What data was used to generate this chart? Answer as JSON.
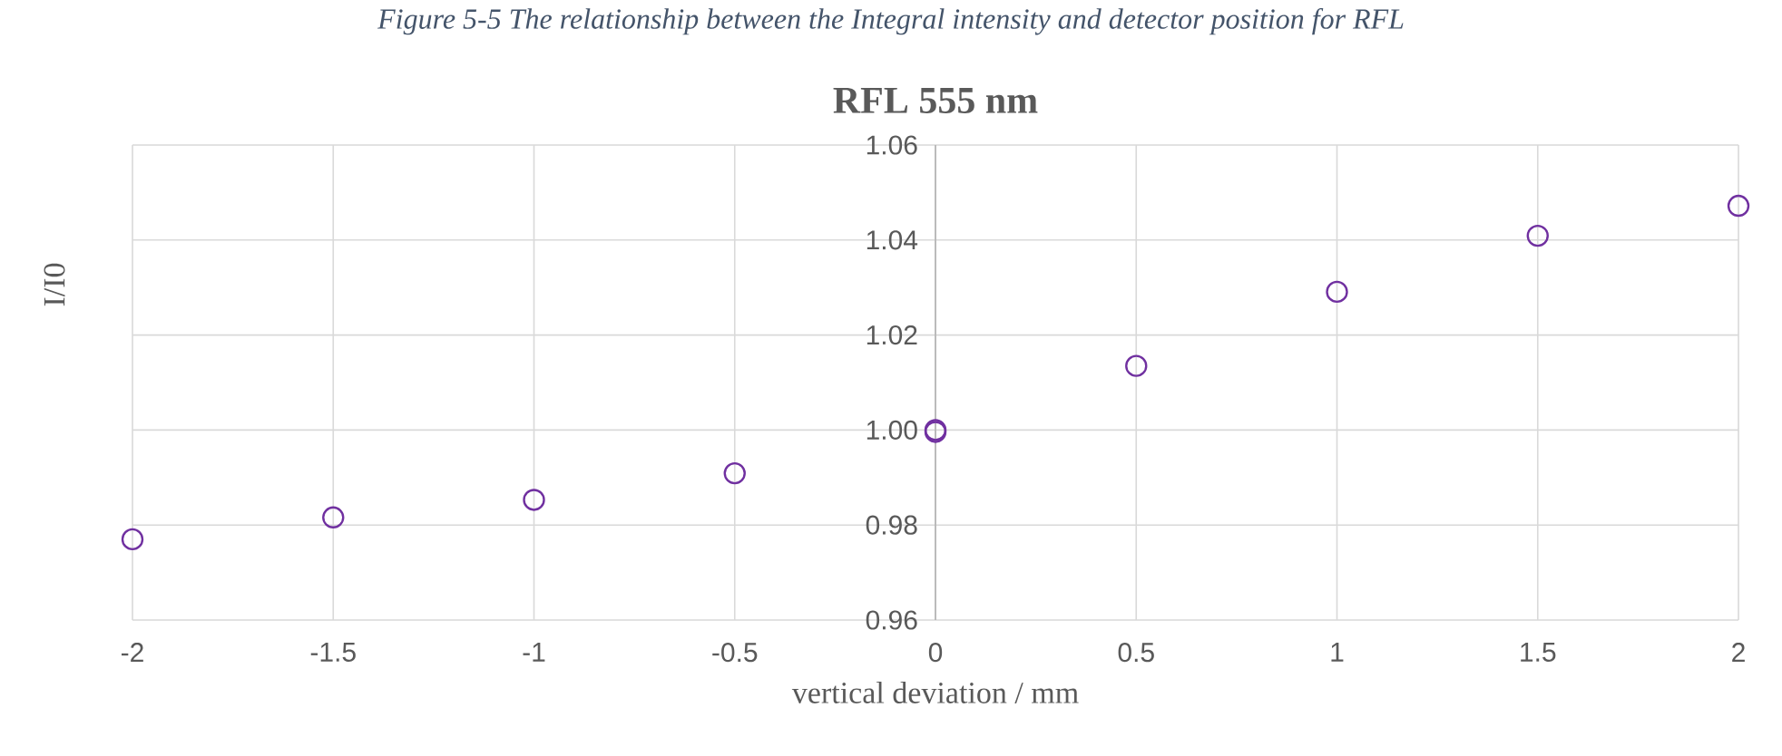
{
  "chart_data": {
    "type": "scatter",
    "title": "RFL 555 nm",
    "xlabel": "vertical deviation / mm",
    "ylabel": "I/I0",
    "annotations": [
      "Figure 5-5 The relationship between the Integral intensity and detector position for RFL"
    ],
    "x": [
      -2,
      -1.5,
      -1,
      -0.5,
      0,
      0,
      0.5,
      1,
      1.5,
      2
    ],
    "series": [
      {
        "color": "#7030a0",
        "values": [
          0.977,
          0.9816,
          0.9853,
          0.9909,
          1.0,
          0.9996,
          1.0135,
          1.0291,
          1.0409,
          1.0472
        ]
      }
    ],
    "xlim": [
      -2,
      2
    ],
    "xticks": [
      -2,
      -1.5,
      -1,
      -0.5,
      0,
      0.5,
      1,
      1.5,
      2
    ],
    "ylim": [
      0.96,
      1.06
    ],
    "yticks": [
      0.96,
      0.98,
      {
        "value": 1.0,
        "label": "1.00"
      },
      1.02,
      1.04,
      1.06
    ],
    "grid": true,
    "marker": "circle"
  }
}
